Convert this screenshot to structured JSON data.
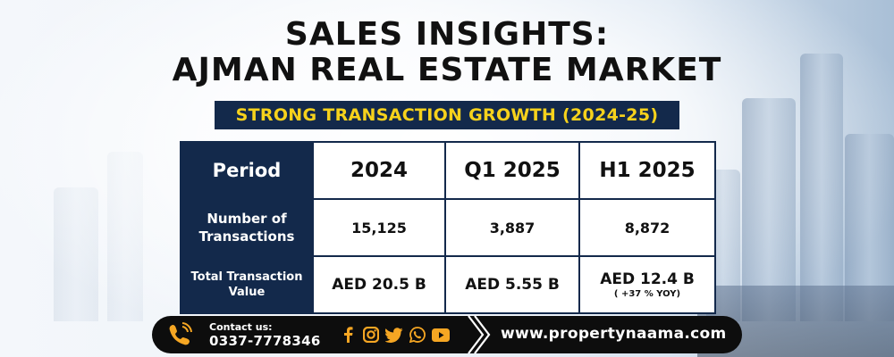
{
  "header": {
    "title_line1": "SALES INSIGHTS:",
    "title_line2": "AJMAN REAL ESTATE MARKET",
    "subtitle": "STRONG TRANSACTION GROWTH (2024-25)"
  },
  "table": {
    "header_label": "Period",
    "columns": [
      "2024",
      "Q1 2025",
      "H1 2025"
    ],
    "rows": [
      {
        "label": "Number of Transactions",
        "values": [
          "15,125",
          "3,887",
          "8,872"
        ]
      },
      {
        "label": "Total Transaction Value",
        "values": [
          "AED 20.5 B",
          "AED 5.55 B",
          "AED 12.4 B"
        ],
        "note": "( +37 % YOY)"
      }
    ]
  },
  "footer": {
    "contact_label": "Contact us:",
    "phone": "0337-7778346",
    "socials": [
      "facebook-icon",
      "instagram-icon",
      "twitter-icon",
      "whatsapp-icon",
      "youtube-icon"
    ],
    "website": "www.propertynaama.com"
  },
  "colors": {
    "navy": "#13294b",
    "accent_yellow": "#f6d21c",
    "footer_black": "#0d0d0d",
    "icon_orange": "#f5a623"
  }
}
